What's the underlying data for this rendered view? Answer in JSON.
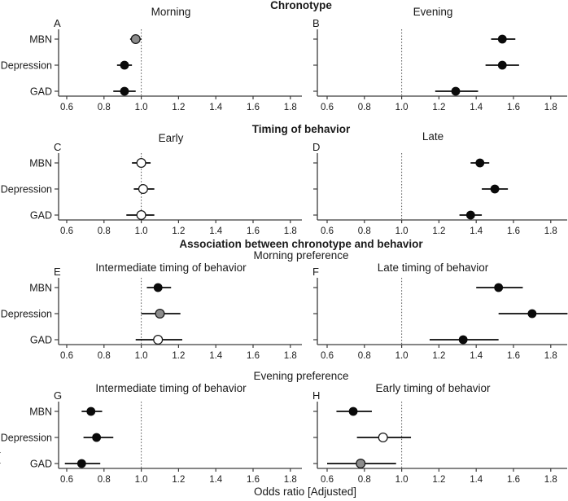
{
  "figure": {
    "xlabel": "Odds ratio [Adjusted]",
    "row_labels": [
      "MBN",
      "Depression",
      "GAD"
    ],
    "x_ticks": [
      0.6,
      0.8,
      1.0,
      1.2,
      1.4,
      1.6,
      1.8
    ],
    "ref_line": 1.0,
    "xlim": [
      0.55,
      1.9
    ],
    "legend": "off",
    "grid": "off",
    "marker_colors": {
      "black": "#0a0a0a",
      "gray": "#8c8c8c",
      "white": "#ffffff"
    },
    "axis_color": "#3c3c3c",
    "edge_artifact": "("
  },
  "headers": {
    "chronotype": "Chronotype",
    "timing": "Timing of behavior",
    "association": "Association between chronotype and behavior",
    "morning_preference": "Morning preference",
    "evening_preference": "Evening preference"
  },
  "chart_data": [
    {
      "type": "scatter",
      "panel": "A",
      "section": "Chronotype",
      "title": "Morning",
      "categories": [
        "MBN",
        "Depression",
        "GAD"
      ],
      "points": [
        {
          "label": "MBN",
          "or": 0.97,
          "ci": [
            0.94,
            1.0
          ],
          "marker": "gray"
        },
        {
          "label": "Depression",
          "or": 0.91,
          "ci": [
            0.87,
            0.95
          ],
          "marker": "black"
        },
        {
          "label": "GAD",
          "or": 0.91,
          "ci": [
            0.85,
            0.97
          ],
          "marker": "black"
        }
      ]
    },
    {
      "type": "scatter",
      "panel": "B",
      "section": "Chronotype",
      "title": "Evening",
      "categories": [
        "MBN",
        "Depression",
        "GAD"
      ],
      "points": [
        {
          "label": "MBN",
          "or": 1.54,
          "ci": [
            1.48,
            1.61
          ],
          "marker": "black"
        },
        {
          "label": "Depression",
          "or": 1.54,
          "ci": [
            1.45,
            1.63
          ],
          "marker": "black"
        },
        {
          "label": "GAD",
          "or": 1.29,
          "ci": [
            1.18,
            1.41
          ],
          "marker": "black"
        }
      ]
    },
    {
      "type": "scatter",
      "panel": "C",
      "section": "Timing of behavior",
      "title": "Early",
      "categories": [
        "MBN",
        "Depression",
        "GAD"
      ],
      "points": [
        {
          "label": "MBN",
          "or": 1.0,
          "ci": [
            0.95,
            1.05
          ],
          "marker": "white"
        },
        {
          "label": "Depression",
          "or": 1.01,
          "ci": [
            0.96,
            1.07
          ],
          "marker": "white"
        },
        {
          "label": "GAD",
          "or": 1.0,
          "ci": [
            0.92,
            1.07
          ],
          "marker": "white"
        }
      ]
    },
    {
      "type": "scatter",
      "panel": "D",
      "section": "Timing of behavior",
      "title": "Late",
      "categories": [
        "MBN",
        "Depression",
        "GAD"
      ],
      "points": [
        {
          "label": "MBN",
          "or": 1.42,
          "ci": [
            1.37,
            1.47
          ],
          "marker": "black"
        },
        {
          "label": "Depression",
          "or": 1.5,
          "ci": [
            1.43,
            1.57
          ],
          "marker": "black"
        },
        {
          "label": "GAD",
          "or": 1.37,
          "ci": [
            1.31,
            1.43
          ],
          "marker": "black"
        }
      ]
    },
    {
      "type": "scatter",
      "panel": "E",
      "section": "Association between chronotype and behavior - Morning preference",
      "title": "Intermediate timing of behavior",
      "categories": [
        "MBN",
        "Depression",
        "GAD"
      ],
      "points": [
        {
          "label": "MBN",
          "or": 1.09,
          "ci": [
            1.03,
            1.16
          ],
          "marker": "black"
        },
        {
          "label": "Depression",
          "or": 1.1,
          "ci": [
            1.0,
            1.21
          ],
          "marker": "gray"
        },
        {
          "label": "GAD",
          "or": 1.09,
          "ci": [
            0.97,
            1.22
          ],
          "marker": "white"
        }
      ]
    },
    {
      "type": "scatter",
      "panel": "F",
      "section": "Association between chronotype and behavior - Morning preference",
      "title": "Late timing of behavior",
      "categories": [
        "MBN",
        "Depression",
        "GAD"
      ],
      "points": [
        {
          "label": "MBN",
          "or": 1.52,
          "ci": [
            1.4,
            1.65
          ],
          "marker": "black"
        },
        {
          "label": "Depression",
          "or": 1.7,
          "ci": [
            1.52,
            1.89
          ],
          "marker": "black"
        },
        {
          "label": "GAD",
          "or": 1.33,
          "ci": [
            1.15,
            1.52
          ],
          "marker": "black"
        }
      ]
    },
    {
      "type": "scatter",
      "panel": "G",
      "section": "Association between chronotype and behavior - Evening preference",
      "title": "Intermediate timing of behavior",
      "categories": [
        "MBN",
        "Depression",
        "GAD"
      ],
      "points": [
        {
          "label": "MBN",
          "or": 0.73,
          "ci": [
            0.68,
            0.79
          ],
          "marker": "black"
        },
        {
          "label": "Depression",
          "or": 0.76,
          "ci": [
            0.69,
            0.85
          ],
          "marker": "black"
        },
        {
          "label": "GAD",
          "or": 0.68,
          "ci": [
            0.59,
            0.78
          ],
          "marker": "black"
        }
      ]
    },
    {
      "type": "scatter",
      "panel": "H",
      "section": "Association between chronotype and behavior - Evening preference",
      "title": "Early timing of behavior",
      "categories": [
        "MBN",
        "Depression",
        "GAD"
      ],
      "points": [
        {
          "label": "MBN",
          "or": 0.74,
          "ci": [
            0.65,
            0.84
          ],
          "marker": "black"
        },
        {
          "label": "Depression",
          "or": 0.9,
          "ci": [
            0.76,
            1.05
          ],
          "marker": "white"
        },
        {
          "label": "GAD",
          "or": 0.78,
          "ci": [
            0.6,
            0.97
          ],
          "marker": "gray"
        }
      ]
    }
  ]
}
